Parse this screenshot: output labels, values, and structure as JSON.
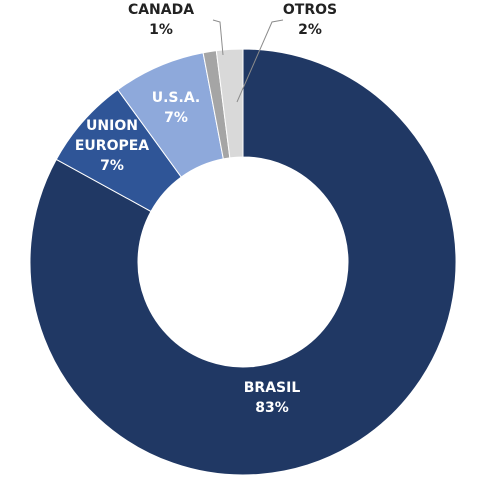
{
  "chart_data": {
    "type": "donut",
    "title": "",
    "slices": [
      {
        "name": "BRASIL",
        "value": 83,
        "label": "83%",
        "color": "#203864"
      },
      {
        "name": "UNION EUROPEA",
        "value": 7,
        "label": "7%",
        "color": "#2F5597"
      },
      {
        "name": "U.S.A.",
        "value": 7,
        "label": "7%",
        "color": "#8EA9DB"
      },
      {
        "name": "CANADA",
        "value": 1,
        "label": "1%",
        "color": "#A5A5A5"
      },
      {
        "name": "OTROS",
        "value": 2,
        "label": "2%",
        "color": "#D9D9D9"
      }
    ],
    "legend": "none"
  }
}
